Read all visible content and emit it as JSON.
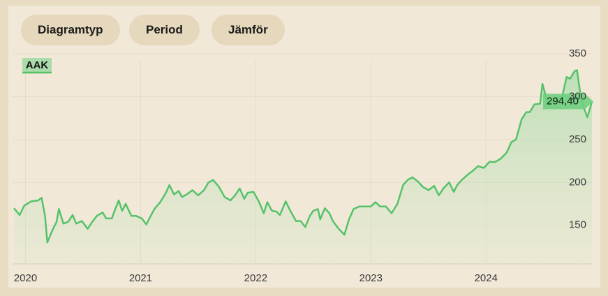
{
  "toolbar": {
    "buttons": [
      "Diagramtyp",
      "Period",
      "Jämför"
    ]
  },
  "chart_data": {
    "type": "line",
    "series": [
      {
        "name": "AAK",
        "color": "#55c26a",
        "x": [
          2019.9,
          2019.95,
          2019.99,
          2020.05,
          2020.11,
          2020.14,
          2020.17,
          2020.19,
          2020.23,
          2020.27,
          2020.29,
          2020.33,
          2020.37,
          2020.41,
          2020.44,
          2020.49,
          2020.54,
          2020.58,
          2020.62,
          2020.67,
          2020.7,
          2020.75,
          2020.78,
          2020.81,
          2020.84,
          2020.87,
          2020.92,
          2020.96,
          2021.01,
          2021.05,
          2021.08,
          2021.12,
          2021.17,
          2021.22,
          2021.25,
          2021.29,
          2021.33,
          2021.36,
          2021.4,
          2021.45,
          2021.5,
          2021.55,
          2021.59,
          2021.63,
          2021.68,
          2021.73,
          2021.78,
          2021.82,
          2021.86,
          2021.9,
          2021.93,
          2021.98,
          2022.03,
          2022.07,
          2022.1,
          2022.14,
          2022.18,
          2022.21,
          2022.26,
          2022.3,
          2022.35,
          2022.39,
          2022.43,
          2022.47,
          2022.5,
          2022.54,
          2022.56,
          2022.6,
          2022.64,
          2022.67,
          2022.72,
          2022.77,
          2022.81,
          2022.85,
          2022.9,
          2022.95,
          2023.0,
          2023.04,
          2023.08,
          2023.13,
          2023.18,
          2023.23,
          2023.28,
          2023.32,
          2023.36,
          2023.41,
          2023.45,
          2023.5,
          2023.55,
          2023.59,
          2023.63,
          2023.68,
          2023.72,
          2023.75,
          2023.79,
          2023.84,
          2023.88,
          2023.93,
          2023.98,
          2024.03,
          2024.08,
          2024.13,
          2024.18,
          2024.22,
          2024.26,
          2024.31,
          2024.35,
          2024.38,
          2024.42,
          2024.47,
          2024.49,
          2024.54,
          2024.59,
          2024.62,
          2024.66,
          2024.7,
          2024.73,
          2024.77,
          2024.79,
          2024.82,
          2024.85,
          2024.88,
          2024.92
        ],
        "values": [
          170,
          162,
          173,
          178,
          179,
          182,
          161,
          130,
          143,
          154,
          169,
          152,
          154,
          162,
          152,
          155,
          146,
          154,
          161,
          165,
          158,
          158,
          169,
          179,
          167,
          175,
          161,
          161,
          158,
          151,
          159,
          169,
          177,
          188,
          197,
          186,
          190,
          183,
          186,
          191,
          185,
          191,
          200,
          203,
          195,
          183,
          179,
          185,
          193,
          181,
          188,
          189,
          177,
          164,
          177,
          167,
          166,
          162,
          178,
          167,
          155,
          155,
          148,
          161,
          167,
          169,
          157,
          170,
          164,
          155,
          146,
          139,
          157,
          169,
          172,
          172,
          172,
          177,
          172,
          172,
          164,
          175,
          197,
          203,
          206,
          201,
          195,
          191,
          196,
          185,
          193,
          200,
          189,
          197,
          203,
          209,
          213,
          219,
          217,
          224,
          224,
          228,
          235,
          247,
          250,
          274,
          282,
          282,
          291,
          292,
          315,
          291,
          296,
          299,
          299,
          323,
          321,
          330,
          331,
          303,
          287,
          276,
          294.4
        ]
      }
    ],
    "last_value_label": "294,40",
    "xlim": [
      2019.9,
      2024.92
    ],
    "xticks": [
      2020,
      2021,
      2022,
      2023,
      2024
    ],
    "ylim": [
      105,
      355
    ],
    "yticks": [
      150,
      200,
      250,
      300,
      350
    ],
    "grid": true
  }
}
